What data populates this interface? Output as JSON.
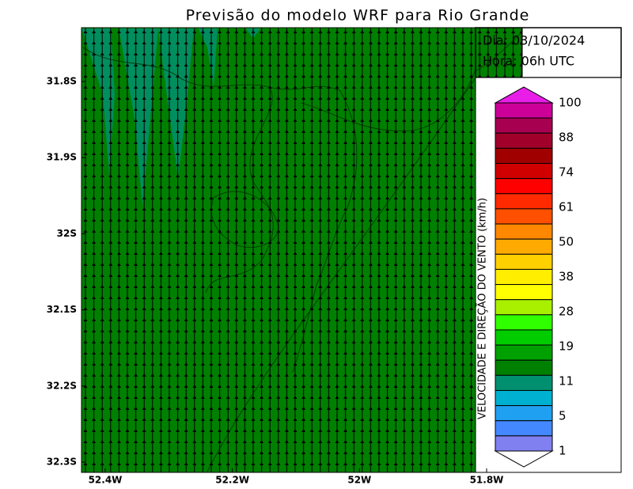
{
  "title": "Previsão do modelo WRF para Rio Grande",
  "info": {
    "date": "Dia: 03/10/2024",
    "hour": "Hora: 06h UTC"
  },
  "axes": {
    "y_labels": [
      "31.8S",
      "31.9S",
      "32S",
      "32.1S",
      "32.2S",
      "32.3S"
    ],
    "x_labels": [
      "52.4W",
      "52.2W",
      "52W",
      "51.8W"
    ]
  },
  "colorbar": {
    "title": "VELOCIDADE E DIREÇÃO DO VENTO (km/h)",
    "labels": [
      "100",
      "88",
      "74",
      "61",
      "50",
      "38",
      "28",
      "19",
      "11",
      "5",
      "1"
    ],
    "top_color": "#e81ee8",
    "colors": [
      "#cc0099",
      "#a80050",
      "#a0002a",
      "#a00000",
      "#d00000",
      "#ff0000",
      "#ff2a00",
      "#ff5000",
      "#ff8800",
      "#ffaa00",
      "#ffd000",
      "#ffee00",
      "#ffff00",
      "#a8f000",
      "#30ff00",
      "#00cc00",
      "#00a000",
      "#008000",
      "#009070",
      "#00b0d0",
      "#20a0f0",
      "#4488ff",
      "#8080f0"
    ]
  }
}
